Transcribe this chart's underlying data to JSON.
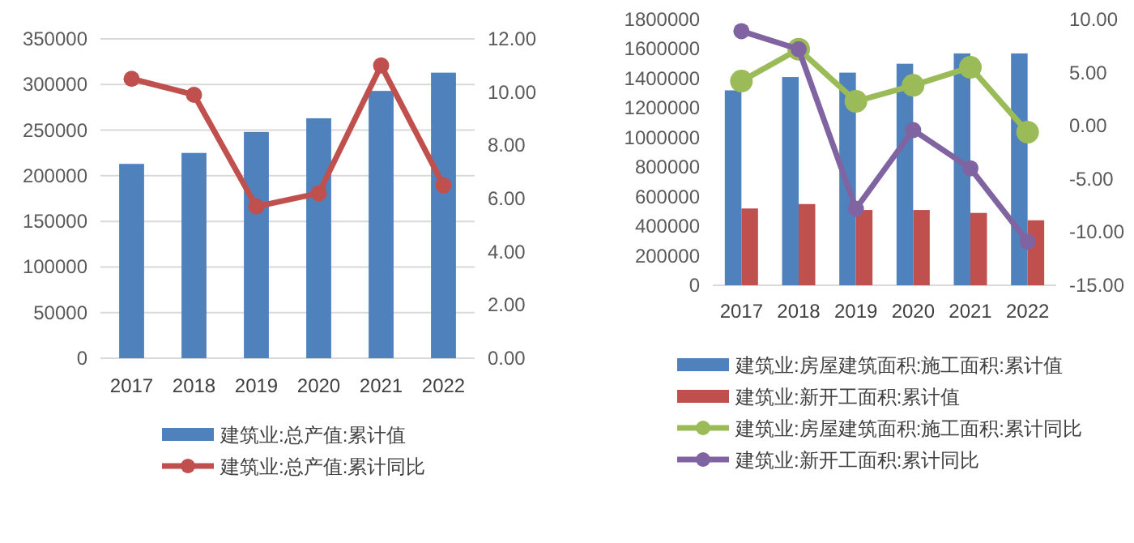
{
  "chart_data": [
    {
      "type": "bar",
      "categories": [
        "2017",
        "2018",
        "2019",
        "2020",
        "2021",
        "2022"
      ],
      "series": [
        {
          "name": "建筑业:总产值:累计值",
          "color": "#4f81bd",
          "values": [
            213000,
            225000,
            248000,
            263000,
            293000,
            313000
          ]
        },
        {
          "name": "建筑业:总产值:累计同比",
          "type": "line",
          "axis": "y2",
          "color": "#c0504d",
          "values": [
            10.5,
            9.9,
            5.7,
            6.2,
            11,
            6.5
          ]
        }
      ],
      "ylim": [
        0,
        350000
      ],
      "yticks": [
        0,
        50000,
        100000,
        150000,
        200000,
        250000,
        300000,
        350000
      ],
      "y2lim": [
        0,
        12
      ],
      "y2ticks": [
        {
          "value": 0,
          "label": "0.00"
        },
        {
          "value": 2,
          "label": "2.00"
        },
        {
          "value": 4,
          "label": "4.00"
        },
        {
          "value": 6,
          "label": "6.00"
        },
        {
          "value": 8,
          "label": "8.00"
        },
        {
          "value": 10,
          "label": "10.00"
        },
        {
          "value": 12,
          "label": "12.00"
        }
      ],
      "grid": "y",
      "legend": "bottom",
      "marker": "circle"
    },
    {
      "type": "bar",
      "categories": [
        "2017",
        "2018",
        "2019",
        "2020",
        "2021",
        "2022"
      ],
      "series": [
        {
          "name": "建筑业:房屋建筑面积:施工面积:累计值",
          "color": "#4f81bd",
          "values": [
            1320000,
            1410000,
            1440000,
            1500000,
            1570000,
            1570000
          ]
        },
        {
          "name": "建筑业:新开工面积:累计值",
          "color": "#c0504d",
          "values": [
            520000,
            550000,
            510000,
            510000,
            490000,
            440000
          ]
        },
        {
          "name": "建筑业:房屋建筑面积:施工面积:累计同比",
          "type": "line",
          "axis": "y2",
          "color": "#9bbb59",
          "values": [
            4.2,
            7.2,
            2.3,
            3.8,
            5.5,
            -0.6
          ]
        },
        {
          "name": "建筑业:新开工面积:累计同比",
          "type": "line",
          "axis": "y2",
          "color": "#8064a2",
          "values": [
            8.9,
            7.2,
            -7.8,
            -0.4,
            -4,
            -10.9
          ]
        }
      ],
      "ylim": [
        0,
        1800000
      ],
      "yticks": [
        0,
        200000,
        400000,
        600000,
        800000,
        1000000,
        1200000,
        1400000,
        1600000,
        1800000
      ],
      "y2lim": [
        -15,
        10
      ],
      "y2ticks": [
        {
          "value": -15,
          "label": "-15.00"
        },
        {
          "value": -10,
          "label": "-10.00"
        },
        {
          "value": -5,
          "label": "-5.00"
        },
        {
          "value": 0,
          "label": "0.00"
        },
        {
          "value": 5,
          "label": "5.00"
        },
        {
          "value": 10,
          "label": "10.00"
        }
      ],
      "legend": "bottom",
      "marker": "circle"
    }
  ]
}
